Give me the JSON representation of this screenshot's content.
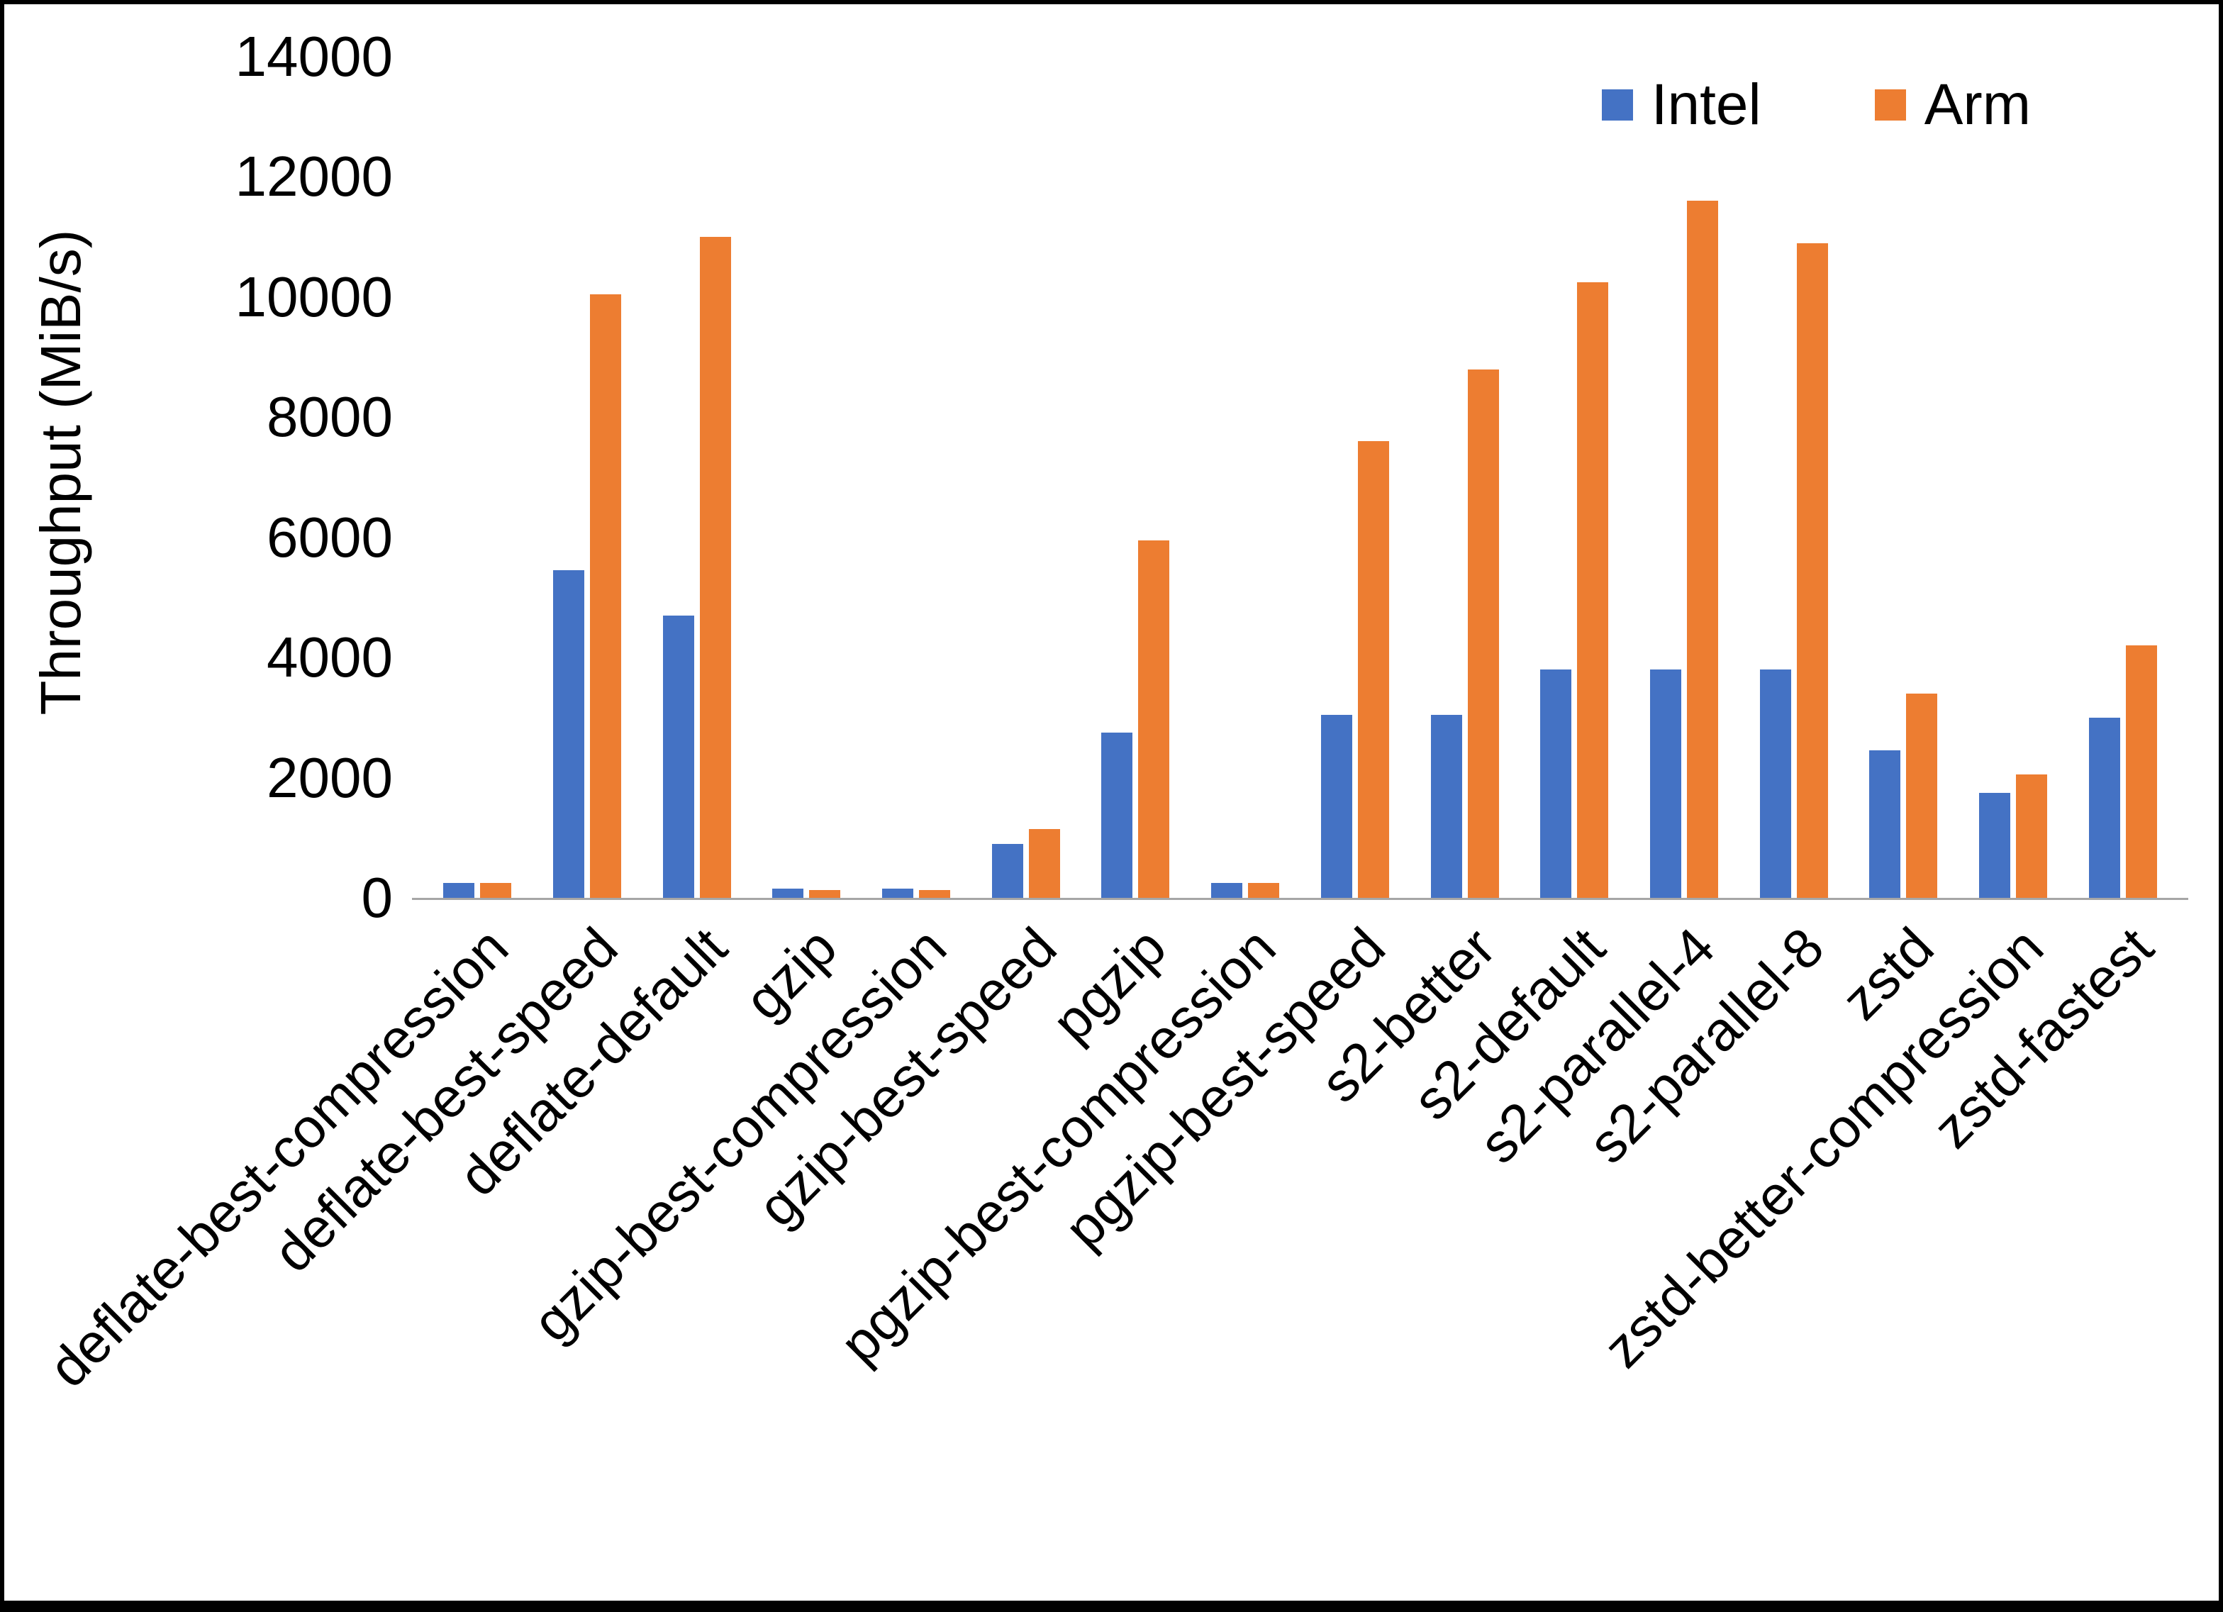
{
  "figure": {
    "background_color": "#ffffff",
    "frame_color": "#000000",
    "axis_line_color": "#a6a6a6"
  },
  "chart_data": {
    "type": "bar",
    "title": "",
    "xlabel": "",
    "ylabel": "Throughput (MiB/s)",
    "ylim": [
      0,
      14000
    ],
    "yticks": [
      0,
      2000,
      4000,
      6000,
      8000,
      10000,
      12000,
      14000
    ],
    "grid": false,
    "legend_position": "top-right",
    "categories": [
      "deflate-best-compression",
      "deflate-best-speed",
      "deflate-default",
      "gzip",
      "gzip-best-compression",
      "gzip-best-speed",
      "pgzip",
      "pgzip-best-compression",
      "pgzip-best-speed",
      "s2-better",
      "s2-default",
      "s2-parallel-4",
      "s2-parallel-8",
      "zstd",
      "zstd-better-compression",
      "zstd-fastest"
    ],
    "series": [
      {
        "name": "Intel",
        "color": "#4472C4",
        "values": [
          250,
          5450,
          4700,
          150,
          150,
          900,
          2750,
          250,
          3050,
          3050,
          3800,
          3800,
          3800,
          2450,
          1750,
          3000
        ]
      },
      {
        "name": "Arm",
        "color": "#ED7D31",
        "values": [
          250,
          10050,
          11000,
          130,
          130,
          1150,
          5950,
          250,
          7600,
          8800,
          10250,
          11600,
          10900,
          3400,
          2050,
          4200
        ]
      }
    ]
  }
}
